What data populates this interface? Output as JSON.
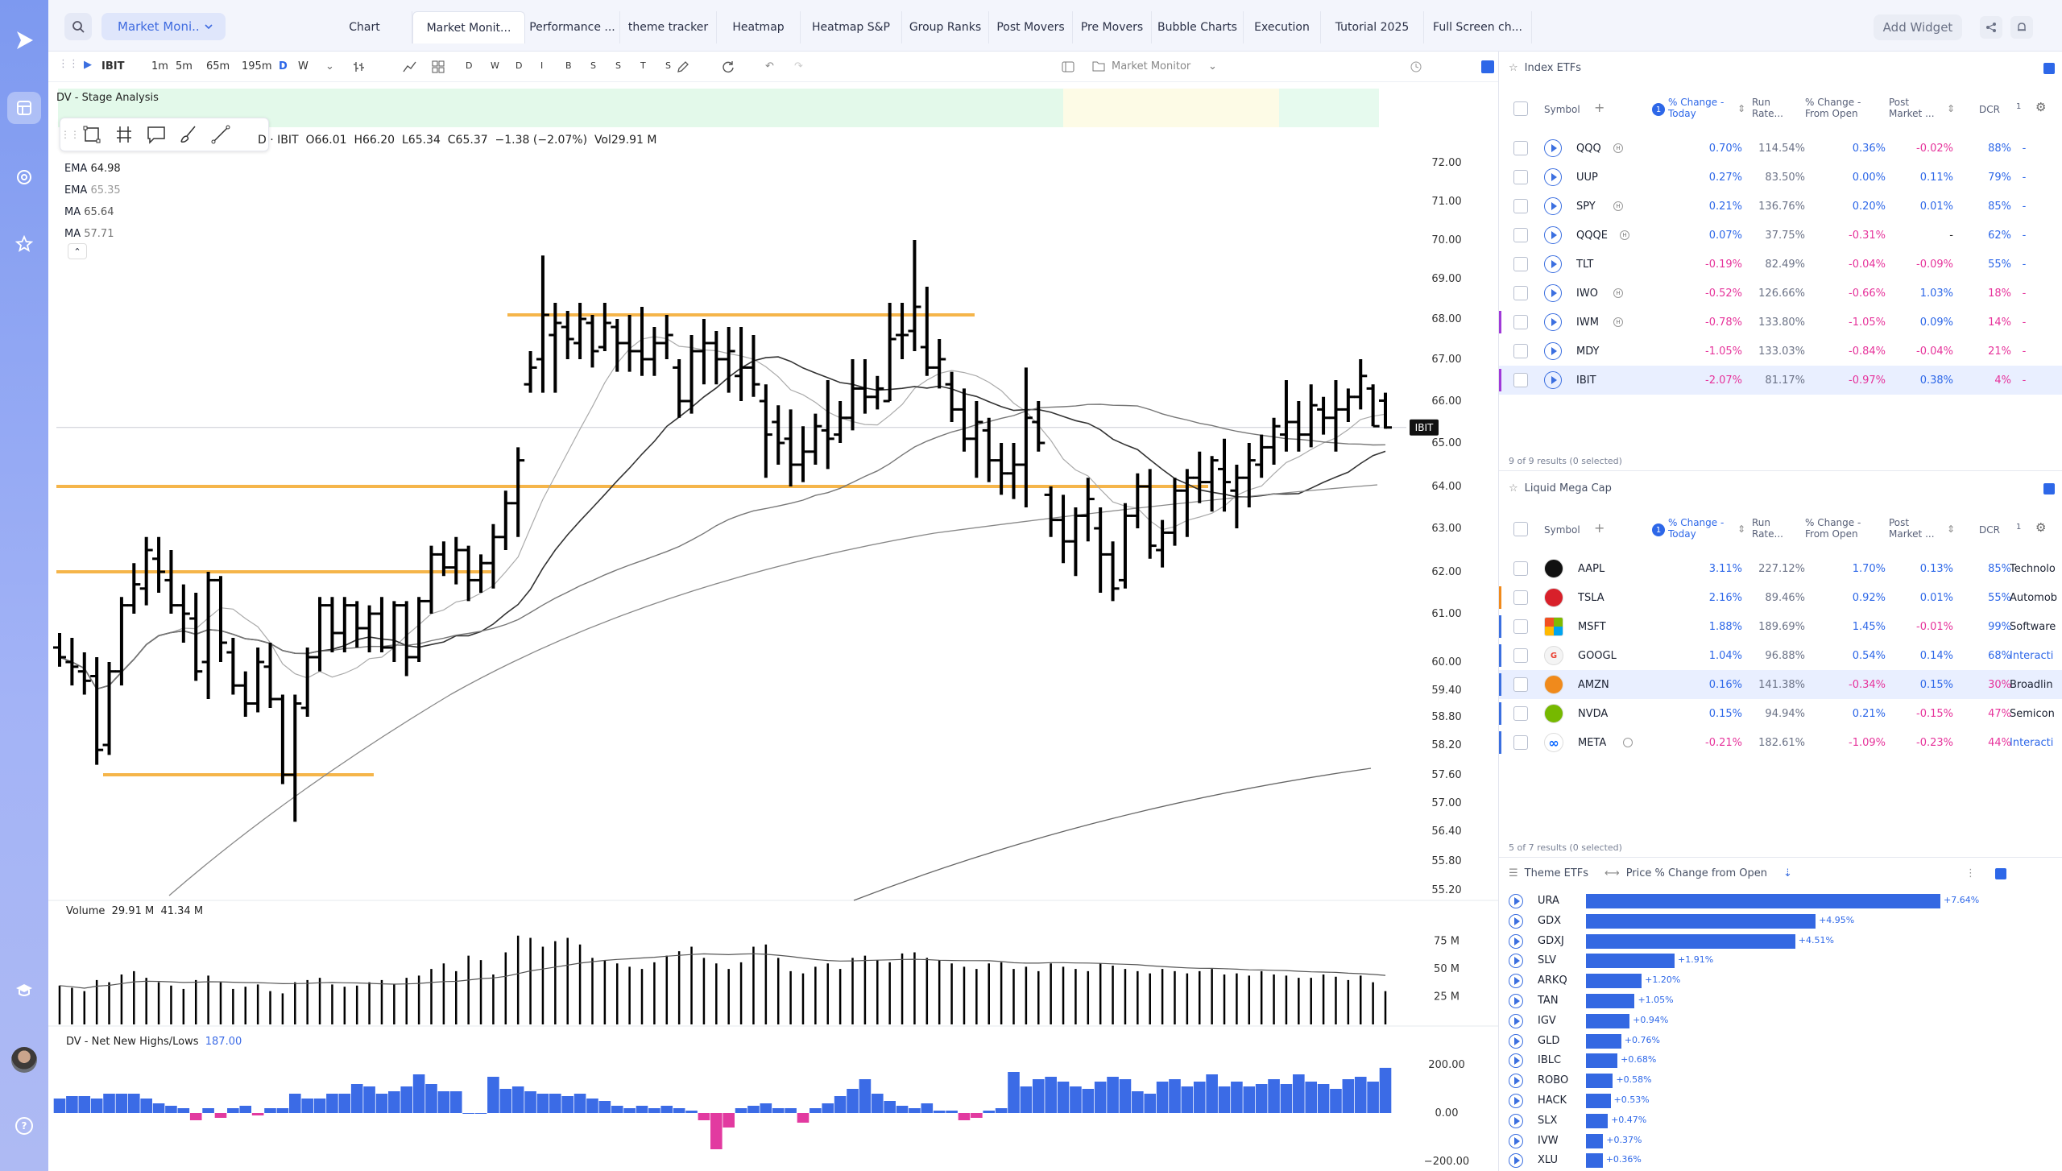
{
  "rail": {
    "icons": [
      "logo-icon",
      "layout-icon",
      "target-icon",
      "star-icon",
      "graduation-icon",
      "avatar",
      "help-icon"
    ]
  },
  "topbar": {
    "dropdown": "Market Moni..",
    "add_widget": "Add Widget",
    "tabs": [
      "Chart",
      "Market Monit...",
      "Performance ...",
      "theme tracker",
      "Heatmap",
      "Heatmap S&P",
      "Group Ranks",
      "Post Movers",
      "Pre Movers",
      "Bubble Charts",
      "Execution",
      "Tutorial 2025",
      "Full Screen ch..."
    ]
  },
  "toolbar": {
    "symbol": "IBIT",
    "intervals": [
      "1m",
      "5m",
      "65m",
      "195m",
      "D",
      "W"
    ],
    "letters": [
      "D",
      "W",
      "D",
      "I",
      "B",
      "S",
      "S",
      "T",
      "S"
    ],
    "layout_name": "Market Monitor"
  },
  "chart": {
    "indicator_banner": "DV - Stage Analysis",
    "ohlc": "D · IBIT  O66.01  H66.20  L65.34  C65.37  −1.38 (−2.07%)  Vol29.91 M",
    "ohlc_prefix": "D · IBIT",
    "o": "O66.01",
    "h": "H66.20",
    "l": "L65.34",
    "c": "C65.37",
    "chg": "−1.38 (−2.07%)",
    "vol": "Vol29.91 M",
    "ma_legend": [
      {
        "name": "EMA",
        "value": "64.98"
      },
      {
        "name": "EMA",
        "value": "65.35"
      },
      {
        "name": "MA",
        "value": "65.64"
      },
      {
        "name": "MA",
        "value": "57.71"
      }
    ],
    "price_ticks": [
      "72.00",
      "71.00",
      "70.00",
      "69.00",
      "68.00",
      "67.00",
      "66.00",
      "65.00",
      "64.00",
      "63.00",
      "62.00",
      "61.00",
      "60.00",
      "59.40",
      "58.80",
      "58.20",
      "57.60",
      "57.00",
      "56.40",
      "55.80",
      "55.20"
    ],
    "last_label": "IBIT",
    "volume_label": "Volume",
    "volume_a": "29.91 M",
    "volume_b": "41.34 M",
    "volume_ticks": [
      "75 M",
      "50 M",
      "25 M"
    ],
    "nnh_label": "DV - Net New Highs/Lows",
    "nnh_value": "187.00",
    "nnh_ticks": [
      "200.00",
      "0.00",
      "−200.00"
    ]
  },
  "chart_data": {
    "type": "bar",
    "title": "IBIT",
    "symbol": "IBIT",
    "ohlc": {
      "open": 66.01,
      "high": 66.2,
      "low": 65.34,
      "close": 65.37,
      "change": -1.38,
      "change_pct": -2.07
    },
    "volume": 29.91,
    "moving_averages": [
      64.98,
      65.35,
      65.64,
      57.71
    ],
    "bars": [
      [
        60.3,
        60.6,
        59.9,
        60.1
      ],
      [
        60.0,
        60.5,
        59.5,
        59.9
      ],
      [
        59.8,
        60.2,
        59.3,
        59.6
      ],
      [
        59.7,
        60.1,
        57.8,
        58.1
      ],
      [
        58.2,
        60.0,
        58.0,
        59.8
      ],
      [
        59.8,
        61.4,
        59.5,
        61.2
      ],
      [
        61.2,
        62.2,
        61.0,
        61.7
      ],
      [
        61.6,
        62.8,
        61.2,
        62.5
      ],
      [
        62.3,
        62.8,
        61.5,
        62.0
      ],
      [
        61.8,
        62.5,
        61.0,
        61.2
      ],
      [
        61.2,
        61.7,
        60.4,
        61.0
      ],
      [
        60.9,
        61.5,
        59.6,
        59.8
      ],
      [
        60.0,
        62.0,
        59.2,
        61.8
      ],
      [
        61.8,
        61.9,
        60.0,
        60.4
      ],
      [
        60.2,
        60.5,
        59.3,
        59.5
      ],
      [
        59.5,
        59.8,
        58.8,
        59.1
      ],
      [
        59.1,
        60.3,
        58.9,
        60.0
      ],
      [
        59.9,
        60.4,
        59.0,
        59.2
      ],
      [
        59.2,
        59.3,
        57.4,
        57.6
      ],
      [
        57.6,
        59.3,
        56.6,
        59.1
      ],
      [
        59.0,
        60.3,
        58.8,
        60.1
      ],
      [
        60.1,
        61.4,
        59.8,
        61.2
      ],
      [
        61.2,
        61.4,
        60.2,
        60.6
      ],
      [
        60.6,
        61.4,
        60.2,
        61.2
      ],
      [
        61.2,
        61.3,
        60.3,
        60.7
      ],
      [
        60.7,
        61.2,
        60.2,
        61.0
      ],
      [
        61.0,
        61.4,
        60.2,
        60.3
      ],
      [
        60.3,
        61.3,
        60.0,
        61.2
      ],
      [
        61.2,
        61.3,
        59.7,
        60.1
      ],
      [
        60.1,
        61.4,
        60.0,
        61.3
      ],
      [
        61.3,
        62.6,
        61.0,
        62.4
      ],
      [
        62.4,
        62.7,
        61.9,
        62.1
      ],
      [
        62.1,
        62.8,
        61.7,
        62.5
      ],
      [
        62.5,
        62.6,
        61.3,
        61.8
      ],
      [
        61.8,
        62.4,
        61.5,
        62.2
      ],
      [
        62.2,
        63.1,
        61.6,
        62.8
      ],
      [
        62.8,
        63.9,
        62.5,
        63.6
      ],
      [
        63.6,
        64.9,
        62.8,
        64.6
      ],
      [
        66.4,
        67.2,
        66.2,
        66.8
      ],
      [
        67.0,
        69.6,
        66.2,
        68.1
      ],
      [
        67.6,
        68.4,
        66.2,
        67.9
      ],
      [
        67.8,
        68.2,
        67.0,
        67.5
      ],
      [
        67.4,
        68.4,
        67.0,
        68.0
      ],
      [
        67.9,
        68.1,
        66.8,
        67.2
      ],
      [
        67.3,
        68.4,
        67.2,
        67.9
      ],
      [
        67.8,
        68.0,
        66.7,
        67.4
      ],
      [
        67.4,
        68.1,
        66.7,
        67.2
      ],
      [
        67.2,
        68.3,
        66.6,
        67.0
      ],
      [
        67.0,
        67.8,
        66.6,
        67.4
      ],
      [
        67.4,
        68.1,
        67.0,
        67.6
      ],
      [
        66.8,
        67.0,
        65.6,
        66.0
      ],
      [
        66.0,
        67.6,
        65.7,
        67.2
      ],
      [
        67.2,
        68.0,
        66.4,
        67.4
      ],
      [
        67.4,
        67.7,
        66.4,
        67.0
      ],
      [
        67.0,
        67.8,
        66.2,
        67.2
      ],
      [
        66.6,
        67.8,
        66.0,
        66.8
      ],
      [
        66.8,
        67.6,
        66.1,
        66.4
      ],
      [
        66.0,
        66.4,
        64.2,
        65.2
      ],
      [
        65.5,
        65.9,
        64.5,
        65.0
      ],
      [
        65.1,
        65.8,
        64.0,
        64.5
      ],
      [
        64.5,
        65.4,
        64.1,
        64.8
      ],
      [
        64.8,
        65.7,
        64.5,
        65.4
      ],
      [
        65.3,
        66.5,
        64.4,
        65.1
      ],
      [
        65.2,
        66.0,
        65.0,
        65.6
      ],
      [
        65.6,
        67.0,
        65.3,
        66.3
      ],
      [
        66.3,
        67.0,
        65.7,
        66.1
      ],
      [
        66.1,
        66.6,
        65.8,
        66.3
      ],
      [
        66.0,
        68.4,
        66.0,
        67.5
      ],
      [
        67.6,
        68.4,
        67.0,
        67.6
      ],
      [
        67.7,
        70.0,
        67.2,
        68.3
      ],
      [
        67.3,
        68.8,
        66.6,
        66.8
      ],
      [
        66.8,
        67.5,
        66.3,
        67.0
      ],
      [
        66.4,
        66.7,
        65.5,
        65.8
      ],
      [
        65.8,
        66.3,
        64.8,
        65.1
      ],
      [
        65.1,
        66.0,
        64.2,
        65.5
      ],
      [
        65.3,
        65.6,
        64.1,
        64.6
      ],
      [
        64.6,
        65.0,
        63.8,
        64.3
      ],
      [
        64.3,
        65.0,
        63.7,
        64.5
      ],
      [
        64.5,
        66.8,
        63.5,
        65.6
      ],
      [
        65.5,
        66.0,
        64.8,
        65.0
      ],
      [
        63.8,
        64.0,
        62.8,
        63.2
      ],
      [
        63.2,
        63.8,
        62.2,
        62.7
      ],
      [
        62.7,
        63.5,
        61.9,
        63.3
      ],
      [
        63.3,
        64.2,
        62.7,
        63.7
      ],
      [
        63.0,
        63.5,
        61.5,
        62.4
      ],
      [
        62.4,
        62.7,
        61.3,
        61.6
      ],
      [
        61.8,
        63.6,
        61.6,
        63.3
      ],
      [
        63.3,
        64.3,
        63.0,
        64.0
      ],
      [
        64.0,
        64.4,
        62.3,
        62.6
      ],
      [
        62.5,
        63.2,
        62.1,
        62.9
      ],
      [
        62.9,
        64.2,
        62.6,
        63.9
      ],
      [
        63.9,
        64.4,
        62.8,
        64.2
      ],
      [
        64.2,
        64.8,
        63.6,
        64.1
      ],
      [
        64.1,
        64.7,
        63.4,
        64.6
      ],
      [
        64.4,
        65.1,
        63.4,
        64.1
      ],
      [
        63.9,
        64.5,
        63.0,
        64.2
      ],
      [
        64.2,
        65.0,
        63.5,
        64.6
      ],
      [
        64.5,
        65.2,
        64.2,
        64.9
      ],
      [
        64.9,
        65.6,
        64.5,
        65.4
      ],
      [
        65.2,
        66.5,
        64.8,
        65.5
      ],
      [
        65.5,
        66.0,
        64.8,
        65.2
      ],
      [
        65.2,
        66.4,
        64.9,
        65.9
      ],
      [
        65.8,
        66.1,
        65.2,
        65.6
      ],
      [
        65.6,
        66.5,
        64.8,
        65.8
      ],
      [
        65.8,
        66.3,
        65.5,
        66.1
      ],
      [
        66.1,
        67.0,
        65.8,
        66.6
      ],
      [
        66.3,
        66.4,
        65.4,
        65.4
      ],
      [
        66.01,
        66.2,
        65.34,
        65.37
      ]
    ],
    "volume_m": [
      35,
      33,
      30,
      40,
      38,
      45,
      48,
      42,
      38,
      35,
      32,
      40,
      44,
      38,
      32,
      34,
      36,
      30,
      28,
      38,
      40,
      42,
      36,
      34,
      35,
      38,
      40,
      36,
      42,
      44,
      50,
      55,
      48,
      62,
      58,
      45,
      65,
      80,
      78,
      70,
      75,
      78,
      72,
      60,
      58,
      55,
      52,
      50,
      56,
      62,
      66,
      70,
      60,
      55,
      50,
      56,
      70,
      72,
      60,
      48,
      46,
      52,
      55,
      50,
      60,
      62,
      58,
      56,
      64,
      65,
      60,
      58,
      55,
      52,
      50,
      55,
      56,
      50,
      52,
      48,
      55,
      52,
      50,
      48,
      55,
      53,
      50,
      48,
      46,
      50,
      48,
      46,
      48,
      50,
      45,
      46,
      44,
      48,
      45,
      44,
      42,
      42,
      45,
      43,
      40,
      44,
      38,
      30
    ],
    "net_new_highs": [
      60,
      70,
      70,
      60,
      80,
      80,
      80,
      60,
      40,
      30,
      20,
      -30,
      20,
      -20,
      20,
      30,
      -10,
      20,
      20,
      80,
      60,
      60,
      80,
      80,
      120,
      110,
      80,
      90,
      110,
      160,
      120,
      90,
      90,
      0,
      0,
      150,
      100,
      110,
      90,
      80,
      80,
      70,
      80,
      60,
      50,
      30,
      20,
      30,
      20,
      30,
      20,
      10,
      -30,
      -150,
      -60,
      20,
      30,
      40,
      20,
      20,
      -40,
      20,
      40,
      70,
      100,
      140,
      80,
      50,
      30,
      20,
      40,
      10,
      10,
      -30,
      -20,
      10,
      20,
      170,
      110,
      140,
      150,
      130,
      110,
      100,
      130,
      150,
      140,
      90,
      80,
      130,
      140,
      110,
      130,
      160,
      110,
      130,
      110,
      120,
      140,
      120,
      160,
      130,
      120,
      100,
      140,
      150,
      130,
      187
    ],
    "trendlines": [
      68.1,
      64.0,
      62.0,
      57.6
    ]
  },
  "panel": {
    "index_etfs": {
      "title": "Index ETFs",
      "hdr_symbol": "Symbol",
      "hdr_chg": "% Change - Today",
      "hdr_run": "Run Rate...",
      "hdr_open": "% Change - From Open",
      "hdr_post": "Post Market ...",
      "hdr_dcr": "DCR",
      "hdr_1": "1",
      "footer": "9 of 9 results (0 selected)",
      "rows": [
        {
          "sym": "QQQ",
          "chg": "0.70%",
          "run": "114.54%",
          "open": "0.36%",
          "post": "-0.02%",
          "dcr": "88%",
          "dash": "-"
        },
        {
          "sym": "UUP",
          "chg": "0.27%",
          "run": "83.50%",
          "open": "0.00%",
          "post": "0.11%",
          "dcr": "79%",
          "dash": "-"
        },
        {
          "sym": "SPY",
          "chg": "0.21%",
          "run": "136.76%",
          "open": "0.20%",
          "post": "0.01%",
          "dcr": "85%",
          "dash": "-"
        },
        {
          "sym": "QQQE",
          "chg": "0.07%",
          "run": "37.75%",
          "open": "-0.31%",
          "post": "-",
          "dcr": "62%",
          "dash": "-"
        },
        {
          "sym": "TLT",
          "chg": "-0.19%",
          "run": "82.49%",
          "open": "-0.04%",
          "post": "-0.09%",
          "dcr": "55%",
          "dash": "-"
        },
        {
          "sym": "IWO",
          "chg": "-0.52%",
          "run": "126.66%",
          "open": "-0.66%",
          "post": "1.03%",
          "dcr": "18%",
          "dash": "-"
        },
        {
          "sym": "IWM",
          "chg": "-0.78%",
          "run": "133.80%",
          "open": "-1.05%",
          "post": "0.09%",
          "dcr": "14%",
          "dash": "-"
        },
        {
          "sym": "MDY",
          "chg": "-1.05%",
          "run": "133.03%",
          "open": "-0.84%",
          "post": "-0.04%",
          "dcr": "21%",
          "dash": "-"
        },
        {
          "sym": "IBIT",
          "chg": "-2.07%",
          "run": "81.17%",
          "open": "-0.97%",
          "post": "0.38%",
          "dcr": "4%",
          "dash": "-"
        }
      ]
    },
    "mega_cap": {
      "title": "Liquid Mega Cap",
      "hdr_symbol": "Symbol",
      "hdr_chg": "% Change - Today",
      "hdr_run": "Run Rate...",
      "hdr_open": "% Change - From Open",
      "hdr_post": "Post Market ...",
      "hdr_dcr": "DCR",
      "hdr_1": "1",
      "footer": "5 of 7 results (0 selected)",
      "rows": [
        {
          "sym": "AAPL",
          "chg": "3.11%",
          "run": "227.12%",
          "open": "1.70%",
          "post": "0.13%",
          "dcr": "85%",
          "sector": "Technolo",
          "logo_color": "#111111"
        },
        {
          "sym": "TSLA",
          "chg": "2.16%",
          "run": "89.46%",
          "open": "0.92%",
          "post": "0.01%",
          "dcr": "55%",
          "sector": "Automob",
          "logo_color": "#d8202a"
        },
        {
          "sym": "MSFT",
          "chg": "1.88%",
          "run": "189.69%",
          "open": "1.45%",
          "post": "-0.01%",
          "dcr": "99%",
          "sector": "Software",
          "logo_color": "#f25022"
        },
        {
          "sym": "GOOGL",
          "chg": "1.04%",
          "run": "96.88%",
          "open": "0.54%",
          "post": "0.14%",
          "dcr": "68%",
          "sector": "Interacti",
          "logo_color": "#f4f4f4"
        },
        {
          "sym": "AMZN",
          "chg": "0.16%",
          "run": "141.38%",
          "open": "-0.34%",
          "post": "0.15%",
          "dcr": "30%",
          "sector": "Broadlin",
          "logo_color": "#f08a1c"
        },
        {
          "sym": "NVDA",
          "chg": "0.15%",
          "run": "94.94%",
          "open": "0.21%",
          "post": "-0.15%",
          "dcr": "47%",
          "sector": "Semicon",
          "logo_color": "#76b900"
        },
        {
          "sym": "META",
          "chg": "-0.21%",
          "run": "182.61%",
          "open": "-1.09%",
          "post": "-0.23%",
          "dcr": "44%",
          "sector": "Interacti",
          "logo_color": "#ffffff"
        }
      ]
    },
    "theme_etfs": {
      "title": "Theme ETFs",
      "metric": "Price % Change from Open",
      "rows": [
        {
          "sym": "URA",
          "val": 7.64,
          "label": "+7.64%"
        },
        {
          "sym": "GDX",
          "val": 4.95,
          "label": "+4.95%"
        },
        {
          "sym": "GDXJ",
          "val": 4.51,
          "label": "+4.51%"
        },
        {
          "sym": "SLV",
          "val": 1.91,
          "label": "+1.91%"
        },
        {
          "sym": "ARKQ",
          "val": 1.2,
          "label": "+1.20%"
        },
        {
          "sym": "TAN",
          "val": 1.05,
          "label": "+1.05%"
        },
        {
          "sym": "IGV",
          "val": 0.94,
          "label": "+0.94%"
        },
        {
          "sym": "GLD",
          "val": 0.76,
          "label": "+0.76%"
        },
        {
          "sym": "IBLC",
          "val": 0.68,
          "label": "+0.68%"
        },
        {
          "sym": "ROBO",
          "val": 0.58,
          "label": "+0.58%"
        },
        {
          "sym": "HACK",
          "val": 0.53,
          "label": "+0.53%"
        },
        {
          "sym": "SLX",
          "val": 0.47,
          "label": "+0.47%"
        },
        {
          "sym": "IVW",
          "val": 0.37,
          "label": "+0.37%"
        },
        {
          "sym": "XLU",
          "val": 0.36,
          "label": "+0.36%"
        }
      ]
    }
  },
  "colors": {
    "accent": "#2d67e8",
    "negative": "#e6339b",
    "bar_blue": "#3468e2",
    "trendline": "#f5b54a",
    "nnh_pos": "#3b6be6",
    "nnh_neg": "#e23aa0"
  }
}
